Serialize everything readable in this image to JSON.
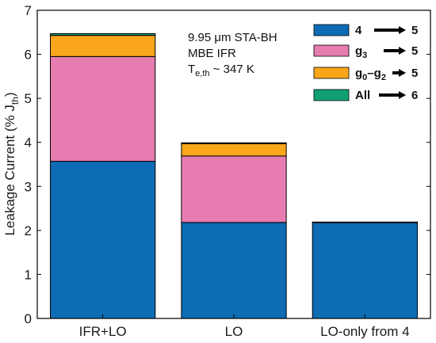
{
  "chart_data": {
    "type": "bar",
    "stacked": true,
    "categories": [
      "IFR+LO",
      "LO",
      "LO-only from 4"
    ],
    "ylabel_main": "Leakage Current (% J",
    "ylabel_sub": "th",
    "ylabel_close": ")",
    "ylim": [
      0,
      7
    ],
    "yticks": [
      "0",
      "1",
      "2",
      "3",
      "4",
      "5",
      "6",
      "7"
    ],
    "grid": false,
    "legend_position": "top-right",
    "annotation": {
      "line1": "9.95 μm STA-BH",
      "line2": "MBE IFR",
      "line3_main": "T",
      "line3_sub": "e,th",
      "line3_rest": " ~ 347 K"
    },
    "series": [
      {
        "name": "4 → 5",
        "legend": {
          "from": "4",
          "from_sub": "",
          "to": "5"
        },
        "color": "#0e6cb4",
        "values": [
          3.57,
          2.18,
          2.18
        ]
      },
      {
        "name": "g3 → 5",
        "legend": {
          "from": "g",
          "from_sub": "3",
          "to": "5"
        },
        "color": "#e77cb0",
        "values": [
          2.38,
          1.51,
          0.0
        ]
      },
      {
        "name": "g0–g2 → 5",
        "legend": {
          "from": "g",
          "from_sub": "0",
          "from_mid": "–g",
          "from_sub2": "2",
          "to": "5"
        },
        "color": "#f9a61b",
        "values": [
          0.48,
          0.28,
          0.0
        ]
      },
      {
        "name": "All → 6",
        "legend": {
          "from": "All",
          "from_sub": "",
          "to": "6"
        },
        "color": "#129f73",
        "values": [
          0.04,
          0.02,
          0.01
        ]
      }
    ]
  }
}
